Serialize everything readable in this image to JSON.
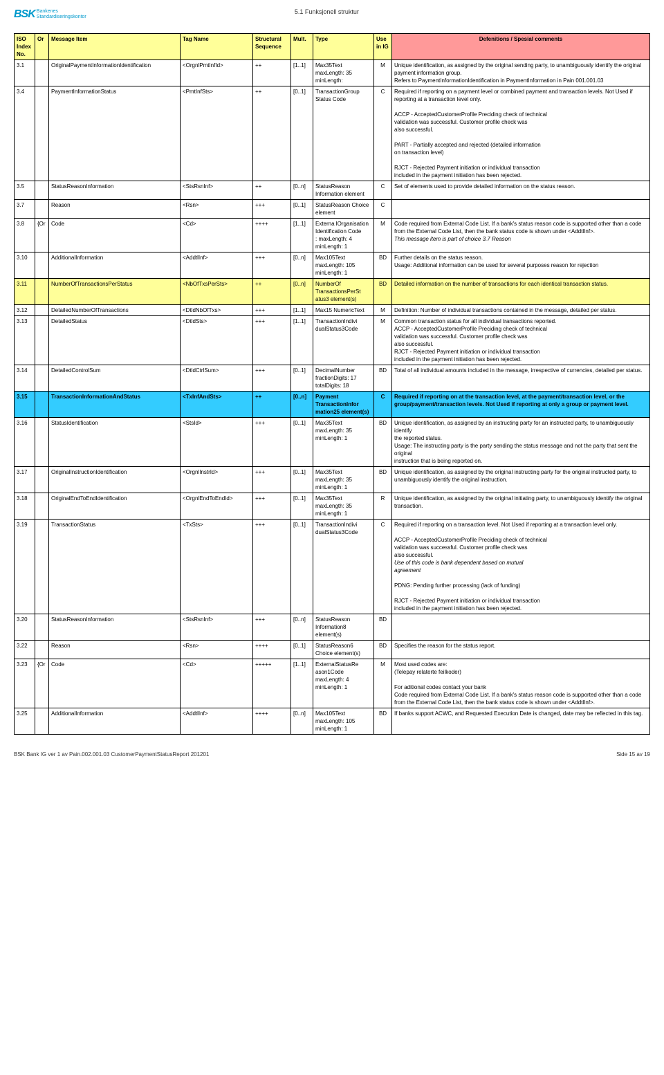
{
  "header": {
    "logo_mark": "BSK",
    "logo_line1": "Bankenes",
    "logo_line2": "Standardiseringskontor",
    "section": "5.1 Funksjonell struktur"
  },
  "columns": [
    "ISO Index No.",
    "Or",
    "Message Item",
    "Tag Name",
    "Structural Sequence",
    "Mult.",
    "Type",
    "Use in IG",
    "Defenitions / Spesial comments"
  ],
  "rows": [
    {
      "iso": "3.1",
      "or": "",
      "msg": "OriginalPaymentInformationIdentification",
      "tag": "<OrgnlPmtInfId>",
      "seq": "++",
      "mult": "[1..1]",
      "type": "Max35Text\nmaxLength: 35\nminLength:",
      "use": "M",
      "def": "Unique identification, as assigned by the original sending party, to unambiguously identify the original payment information group.\nRefers to PaymentInformationIdentification  in PaymentInformation in Pain 001.001.03"
    },
    {
      "iso": "3.4",
      "or": "",
      "msg": "PaymentInformationStatus",
      "tag": "<PmtInfSts>",
      "seq": "++",
      "mult": "[0..1]",
      "type": "TransactionGroup Status Code",
      "use": "C",
      "def": "Required if reporting on a payment level or combined payment and transaction levels. Not Used if reporting at a transaction level only.\n\nACCP - AcceptedCustomerProfile Preciding check of technical\n           validation was successful. Customer profile check was\n           also successful.\n\nPART -  Partially accepted and rejected (detailed information\n           on transaction level)\n\nRJCT - Rejected Payment initiation or individual transaction\n           included in the payment initiation has been rejected."
    },
    {
      "iso": "3.5",
      "or": "",
      "msg": "StatusReasonInformation",
      "tag": "<StsRsnInf>",
      "seq": "++",
      "mult": "[0..n]",
      "type": " StatusReason Information element",
      "use": "C",
      "def": "Set of elements used to provide detailed information on the status reason."
    },
    {
      "iso": "3.7",
      "or": "",
      "msg": "Reason",
      "tag": "<Rsn>",
      "seq": "+++",
      "mult": "[0..1]",
      "type": " StatusReason Choice element",
      "use": "C",
      "def": ""
    },
    {
      "iso": "3.8",
      "or": "{Or",
      "msg": "Code",
      "tag": "<Cd>",
      "seq": "++++",
      "mult": "[1..1]",
      "type": " Externa lOrganisation Identification Code\n: maxLength: 4\nminLength: 1",
      "use": "M",
      "def": "Code required from External Code List.  If a bank's status reason code is supported other than a code from the External Code List, then the bank status code is shown under <AddtlInf>.\n<i>This message item is part of choice 3.7 Reason</i>"
    },
    {
      "iso": "3.10",
      "or": "",
      "msg": "AdditionalInformation",
      "tag": "<AddtlInf>",
      "seq": "+++",
      "mult": "[0..n]",
      "type": "Max105Text\nmaxLength: 105\nminLength: 1",
      "use": "BD",
      "def": "Further details on the status reason.\nUsage: Additional information can be used for several purposes reason for rejection"
    },
    {
      "hl": "yellow",
      "iso": "3.11",
      "or": "",
      "msg": "NumberOfTransactionsPerStatus",
      "tag": "<NbOfTxsPerSts>",
      "seq": "++",
      "mult": "[0..n]",
      "type": " NumberOf TransactionsPerSt atus3 element(s)",
      "use": "BD",
      "def": "Detailed information on the number of transactions for each identical transaction status."
    },
    {
      "iso": "3.12",
      "or": "",
      "msg": "DetailedNumberOfTransactions",
      "tag": "<DtldNbOfTxs>",
      "seq": "+++",
      "mult": "[1..1]",
      "type": "Max15 NumericText",
      "use": "M",
      "def": "Definition: Number of individual transactions contained in the message, detailed per status."
    },
    {
      "iso": "3.13",
      "or": "",
      "msg": "DetailedStatus",
      "tag": "<DtldSts>",
      "seq": "+++",
      "mult": "[1..1]",
      "type": "TransactionIndivi dualStatus3Code",
      "use": "M",
      "def": "Common transaction status for all individual transactions reported.\nACCP - AcceptedCustomerProfile Preciding check of technical\n           validation was successful. Customer profile check was\n           also successful.\nRJCT - Rejected Payment initiation or individual transaction\n           included in the payment initiation has been rejected."
    },
    {
      "iso": "3.14",
      "or": "",
      "msg": "DetailedControlSum",
      "tag": "<DtldCtrlSum>",
      "seq": "+++",
      "mult": "[0..1]",
      "type": "DecimalNumber\nfractionDigits: 17\ntotalDigits: 18",
      "use": "BD",
      "def": "Total of all individual amounts included in the message, irrespective of currencies, detailed per status."
    },
    {
      "hl": "cyan",
      "iso": "3.15",
      "or": "",
      "msg": "TransactionInformationAndStatus",
      "tag": "<TxInfAndSts>",
      "seq": "++",
      "mult": "[0..n]",
      "type": " Payment TransactionInfor mation25 element(s)",
      "use": "C",
      "def": "Required if reporting on at the transaction level, at the payment/transaction level, or the group/payment/transaction levels. Not Used if reporting at only a group or payment level."
    },
    {
      "iso": "3.16",
      "or": "",
      "msg": "StatusIdentification",
      "tag": "<StsId>",
      "seq": "+++",
      "mult": "[0..1]",
      "type": "Max35Text\nmaxLength: 35\nminLength: 1",
      "use": "BD",
      "def": "Unique identification, as assigned by an instructing party for an instructed party, to unambiguously identify\nthe reported status.\nUsage: The instructing party is the party sending the status message and not the party that sent the original\ninstruction that is being reported on."
    },
    {
      "iso": "3.17",
      "or": "",
      "msg": "OriginalInstructionIdentification",
      "tag": "<OrgnlInstrId>",
      "seq": "+++",
      "mult": "[0..1]",
      "type": "Max35Text\nmaxLength: 35\nminLength: 1",
      "use": "BD",
      "def": "Unique identification, as assigned by the original instructing party for the original instructed party, to\nunambiguously identify the original instruction."
    },
    {
      "iso": "3.18",
      "or": "",
      "msg": "OriginalEndToEndIdentification",
      "tag": "<OrgnlEndToEndId>",
      "seq": "+++",
      "mult": "[0..1]",
      "type": "Max35Text\nmaxLength: 35\nminLength: 1",
      "use": "R",
      "def": "Unique identification, as assigned by the original initiating party, to unambiguously identify the original\ntransaction."
    },
    {
      "iso": "3.19",
      "or": "",
      "msg": "TransactionStatus",
      "tag": "<TxSts>",
      "seq": "+++",
      "mult": "[0..1]",
      "type": "TransactionIndivi dualStatus3Code",
      "use": "C",
      "def": "Required if reporting on a transaction level. Not Used if reporting at a transaction level only.\n\nACCP - AcceptedCustomerProfile Preciding check of technical\n           validation was successful. Customer profile check was\n           also successful.\n           <i>Use of this code is bank dependent based on mutual\n           agreement</i>\n\nPDNG:  Pending further processing (lack of funding)\n\nRJCT - Rejected Payment initiation or individual transaction\n           included in the payment initiation has been rejected."
    },
    {
      "iso": "3.20",
      "or": "",
      "msg": "StatusReasonInformation",
      "tag": "<StsRsnInf>",
      "seq": "+++",
      "mult": "[0..n]",
      "type": " StatusReason Information8 element(s)",
      "use": "BD",
      "def": ""
    },
    {
      "iso": "3.22",
      "or": "",
      "msg": "Reason",
      "tag": "<Rsn>",
      "seq": "++++",
      "mult": "[0..1]",
      "type": " StatusReason6 Choice element(s)",
      "use": "BD",
      "def": "Specifies the reason for the status report."
    },
    {
      "iso": "3.23",
      "or": "{Or",
      "msg": "Code",
      "tag": "<Cd>",
      "seq": "+++++",
      "mult": "[1..1]",
      "type": "ExternalStatusRe ason1Code\nmaxLength: 4\nminLength: 1",
      "use": "M",
      "def": "Most used codes are:\n    (Telepay relaterte feilkoder)\n\nFor aditional codes contact your bank\nCode required from External Code List.  If a bank's status reason code is supported other than a code from the External Code List, then the bank status code is shown under <AddtlInf>."
    },
    {
      "iso": "3.25",
      "or": "",
      "msg": "AdditionalInformation",
      "tag": "<AddtlInf>",
      "seq": "++++",
      "mult": "[0..n]",
      "type": "Max105Text\nmaxLength: 105\nminLength: 1",
      "use": "BD",
      "def": "If banks support ACWC, and Requested Execution Date is changed, date may be reflected in this tag."
    }
  ],
  "footer": {
    "left": "BSK Bank IG ver 1 av Pain.002.001.03 CustomerPaymentStatusReport 201201",
    "right": "Side 15 av 19"
  },
  "colors": {
    "hdr_yellow": "#ffff99",
    "hdr_red": "#ff9999",
    "row_cyan": "#33ccff",
    "logo": "#0099cc",
    "border": "#000000",
    "bg": "#ffffff"
  }
}
